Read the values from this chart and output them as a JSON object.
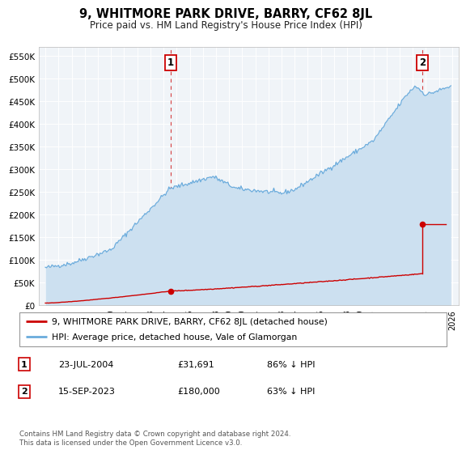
{
  "title": "9, WHITMORE PARK DRIVE, BARRY, CF62 8JL",
  "subtitle": "Price paid vs. HM Land Registry's House Price Index (HPI)",
  "hpi_fill_color": "#cce0f0",
  "hpi_line_color": "#6aabdc",
  "price_color": "#cc0000",
  "plot_bg_color": "#f0f4f8",
  "grid_color": "#ffffff",
  "xlim": [
    1994.5,
    2026.5
  ],
  "ylim": [
    0,
    570000
  ],
  "yticks": [
    0,
    50000,
    100000,
    150000,
    200000,
    250000,
    300000,
    350000,
    400000,
    450000,
    500000,
    550000
  ],
  "ytick_labels": [
    "£0",
    "£50K",
    "£100K",
    "£150K",
    "£200K",
    "£250K",
    "£300K",
    "£350K",
    "£400K",
    "£450K",
    "£500K",
    "£550K"
  ],
  "xticks": [
    1995,
    1996,
    1997,
    1998,
    1999,
    2000,
    2001,
    2002,
    2003,
    2004,
    2005,
    2006,
    2007,
    2008,
    2009,
    2010,
    2011,
    2012,
    2013,
    2014,
    2015,
    2016,
    2017,
    2018,
    2019,
    2020,
    2021,
    2022,
    2023,
    2024,
    2025,
    2026
  ],
  "sale1_x": 2004.55,
  "sale1_y": 31691,
  "sale2_x": 2023.71,
  "sale2_y": 180000,
  "sale2_pre_y": 70000,
  "legend_label_price": "9, WHITMORE PARK DRIVE, BARRY, CF62 8JL (detached house)",
  "legend_label_hpi": "HPI: Average price, detached house, Vale of Glamorgan",
  "table_row1": [
    "1",
    "23-JUL-2004",
    "£31,691",
    "86% ↓ HPI"
  ],
  "table_row2": [
    "2",
    "15-SEP-2023",
    "£180,000",
    "63% ↓ HPI"
  ],
  "footer_text": "Contains HM Land Registry data © Crown copyright and database right 2024.\nThis data is licensed under the Open Government Licence v3.0."
}
